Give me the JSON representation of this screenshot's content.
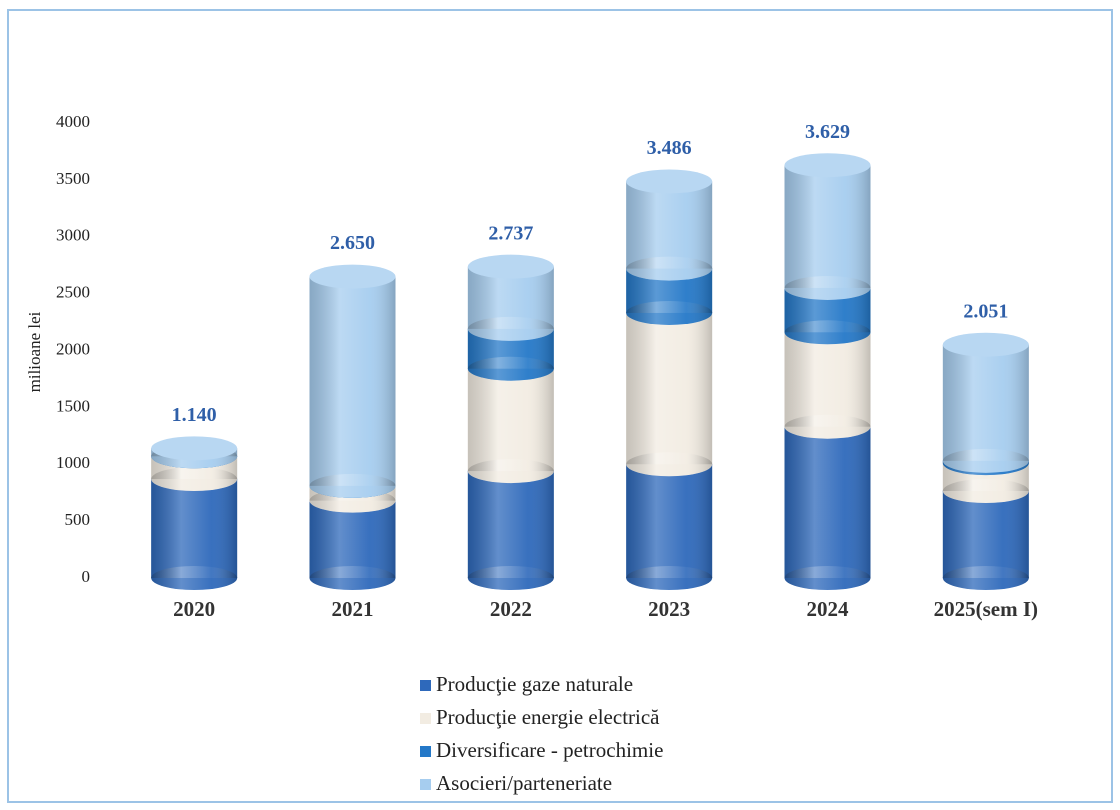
{
  "chart_data": {
    "type": "bar",
    "stacked": true,
    "y_label": "milioane lei",
    "categories": [
      "2020",
      "2021",
      "2022",
      "2023",
      "2024",
      "2025(sem I)"
    ],
    "series": [
      {
        "name": "Producţie gaze naturale",
        "color": "#2e69bb",
        "values": [
          870,
          680,
          940,
          1000,
          1330,
          765
        ]
      },
      {
        "name": "Producţie energie electrică",
        "color": "#f2ece2",
        "values": [
          200,
          130,
          900,
          1330,
          830,
          245
        ]
      },
      {
        "name": "Diversificare - petrochimie",
        "color": "#2478c8",
        "values": [
          0,
          0,
          350,
          390,
          390,
          20
        ]
      },
      {
        "name": "Asocieri/parteneriate",
        "color": "#a6cdef",
        "values": [
          70,
          1840,
          547,
          766,
          1079,
          1021
        ]
      }
    ],
    "totals": {
      "values": [
        1140,
        2650,
        2737,
        3486,
        3629,
        2051
      ],
      "value_labels": [
        "1.140",
        "2.650",
        "2.737",
        "3.486",
        "3.629",
        "2.051"
      ]
    },
    "ylim": [
      0,
      4000
    ],
    "yticks": [
      0,
      500,
      1000,
      1500,
      2000,
      2500,
      3000,
      3500,
      4000
    ],
    "legend": "bottom"
  }
}
